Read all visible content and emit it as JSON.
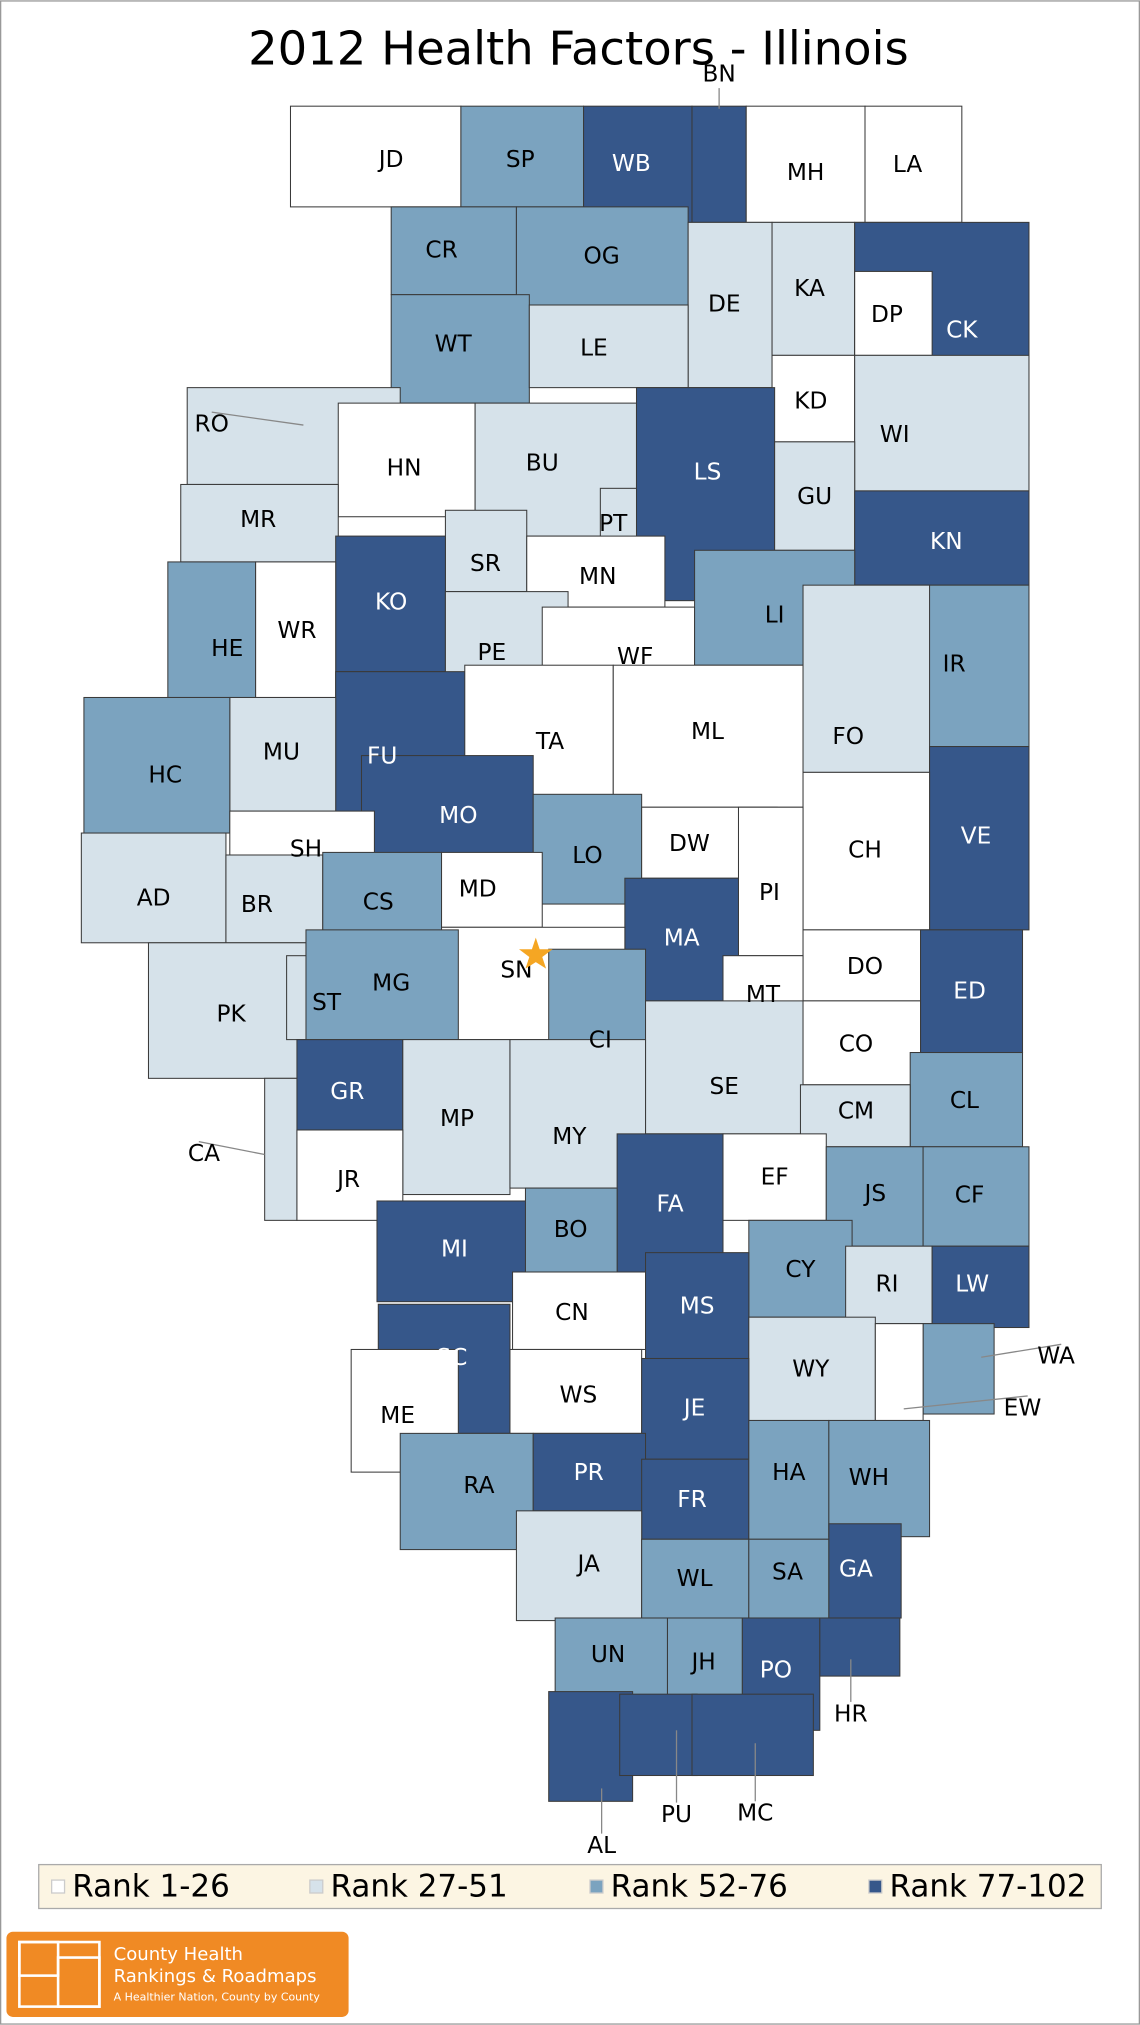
{
  "title": "2012 Health Factors - Illinois",
  "legend": [
    {
      "label": "Rank 1-26",
      "color": "#ffffff"
    },
    {
      "label": "Rank 27-51",
      "color": "#d6e2ea"
    },
    {
      "label": "Rank 52-76",
      "color": "#7ba3bf"
    },
    {
      "label": "Rank 77-102",
      "color": "#36578a"
    }
  ],
  "counties": [
    {
      "label": "JD",
      "color": "#ffffff"
    },
    {
      "label": "SP",
      "color": "#7ba3bf"
    },
    {
      "label": "WB",
      "color": "#36578a"
    },
    {
      "label": "BN",
      "color": "#36578a"
    },
    {
      "label": "MH",
      "color": "#ffffff"
    },
    {
      "label": "LA",
      "color": "#ffffff"
    },
    {
      "label": "CR",
      "color": "#7ba3bf"
    },
    {
      "label": "OG",
      "color": "#7ba3bf"
    },
    {
      "label": "DE",
      "color": "#d6e2ea"
    },
    {
      "label": "KA",
      "color": "#d6e2ea"
    },
    {
      "label": "CK",
      "color": "#36578a"
    },
    {
      "label": "DP",
      "color": "#ffffff"
    },
    {
      "label": "WT",
      "color": "#7ba3bf"
    },
    {
      "label": "LE",
      "color": "#d6e2ea"
    },
    {
      "label": "KD",
      "color": "#ffffff"
    },
    {
      "label": "WI",
      "color": "#d6e2ea"
    },
    {
      "label": "RO",
      "color": "#d6e2ea"
    },
    {
      "label": "HN",
      "color": "#ffffff"
    },
    {
      "label": "BU",
      "color": "#d6e2ea"
    },
    {
      "label": "LS",
      "color": "#36578a"
    },
    {
      "label": "GU",
      "color": "#d6e2ea"
    },
    {
      "label": "PT",
      "color": "#d6e2ea"
    },
    {
      "label": "MR",
      "color": "#d6e2ea"
    },
    {
      "label": "KN",
      "color": "#36578a"
    },
    {
      "label": "SR",
      "color": "#d6e2ea"
    },
    {
      "label": "MN",
      "color": "#ffffff"
    },
    {
      "label": "KO",
      "color": "#36578a"
    },
    {
      "label": "HE",
      "color": "#7ba3bf"
    },
    {
      "label": "WR",
      "color": "#ffffff"
    },
    {
      "label": "PE",
      "color": "#d6e2ea"
    },
    {
      "label": "WF",
      "color": "#ffffff"
    },
    {
      "label": "LI",
      "color": "#7ba3bf"
    },
    {
      "label": "IR",
      "color": "#7ba3bf"
    },
    {
      "label": "FU",
      "color": "#36578a"
    },
    {
      "label": "MU",
      "color": "#d6e2ea"
    },
    {
      "label": "HC",
      "color": "#7ba3bf"
    },
    {
      "label": "TA",
      "color": "#ffffff"
    },
    {
      "label": "ML",
      "color": "#ffffff"
    },
    {
      "label": "FO",
      "color": "#d6e2ea"
    },
    {
      "label": "MO",
      "color": "#36578a"
    },
    {
      "label": "VE",
      "color": "#36578a"
    },
    {
      "label": "SH",
      "color": "#ffffff"
    },
    {
      "label": "AD",
      "color": "#d6e2ea"
    },
    {
      "label": "BR",
      "color": "#d6e2ea"
    },
    {
      "label": "CS",
      "color": "#7ba3bf"
    },
    {
      "label": "LO",
      "color": "#7ba3bf"
    },
    {
      "label": "DW",
      "color": "#ffffff"
    },
    {
      "label": "CH",
      "color": "#ffffff"
    },
    {
      "label": "MD",
      "color": "#ffffff"
    },
    {
      "label": "PI",
      "color": "#ffffff"
    },
    {
      "label": "MA",
      "color": "#36578a"
    },
    {
      "label": "SN",
      "color": "#ffffff"
    },
    {
      "label": "DO",
      "color": "#ffffff"
    },
    {
      "label": "ED",
      "color": "#36578a"
    },
    {
      "label": "PK",
      "color": "#d6e2ea"
    },
    {
      "label": "ST",
      "color": "#d6e2ea"
    },
    {
      "label": "MG",
      "color": "#7ba3bf"
    },
    {
      "label": "MT",
      "color": "#ffffff"
    },
    {
      "label": "CI",
      "color": "#7ba3bf"
    },
    {
      "label": "SE",
      "color": "#d6e2ea"
    },
    {
      "label": "CO",
      "color": "#ffffff"
    },
    {
      "label": "CL",
      "color": "#7ba3bf"
    },
    {
      "label": "GR",
      "color": "#36578a"
    },
    {
      "label": "MP",
      "color": "#d6e2ea"
    },
    {
      "label": "MY",
      "color": "#d6e2ea"
    },
    {
      "label": "CM",
      "color": "#d6e2ea"
    },
    {
      "label": "CA",
      "color": "#d6e2ea"
    },
    {
      "label": "JR",
      "color": "#ffffff"
    },
    {
      "label": "EF",
      "color": "#ffffff"
    },
    {
      "label": "FA",
      "color": "#36578a"
    },
    {
      "label": "JS",
      "color": "#7ba3bf"
    },
    {
      "label": "CF",
      "color": "#7ba3bf"
    },
    {
      "label": "MI",
      "color": "#36578a"
    },
    {
      "label": "BO",
      "color": "#7ba3bf"
    },
    {
      "label": "CY",
      "color": "#7ba3bf"
    },
    {
      "label": "RI",
      "color": "#d6e2ea"
    },
    {
      "label": "LW",
      "color": "#36578a"
    },
    {
      "label": "CN",
      "color": "#ffffff"
    },
    {
      "label": "MS",
      "color": "#36578a"
    },
    {
      "label": "SC",
      "color": "#36578a"
    },
    {
      "label": "WA",
      "color": "#7ba3bf"
    },
    {
      "label": "WY",
      "color": "#d6e2ea"
    },
    {
      "label": "ME",
      "color": "#ffffff"
    },
    {
      "label": "WS",
      "color": "#ffffff"
    },
    {
      "label": "JE",
      "color": "#36578a"
    },
    {
      "label": "EW",
      "color": "#ffffff"
    },
    {
      "label": "RA",
      "color": "#7ba3bf"
    },
    {
      "label": "PR",
      "color": "#36578a"
    },
    {
      "label": "FR",
      "color": "#36578a"
    },
    {
      "label": "HA",
      "color": "#7ba3bf"
    },
    {
      "label": "WH",
      "color": "#7ba3bf"
    },
    {
      "label": "JA",
      "color": "#d6e2ea"
    },
    {
      "label": "WL",
      "color": "#7ba3bf"
    },
    {
      "label": "SA",
      "color": "#7ba3bf"
    },
    {
      "label": "GA",
      "color": "#36578a"
    },
    {
      "label": "UN",
      "color": "#7ba3bf"
    },
    {
      "label": "JH",
      "color": "#7ba3bf"
    },
    {
      "label": "PO",
      "color": "#36578a"
    },
    {
      "label": "HR",
      "color": "#36578a"
    },
    {
      "label": "AL",
      "color": "#36578a"
    },
    {
      "label": "PU",
      "color": "#36578a"
    },
    {
      "label": "MC",
      "color": "#36578a"
    }
  ],
  "logo": {
    "line1": "County Health",
    "line2": "Rankings & Roadmaps",
    "tagline": "A Healthier Nation, County by County"
  }
}
